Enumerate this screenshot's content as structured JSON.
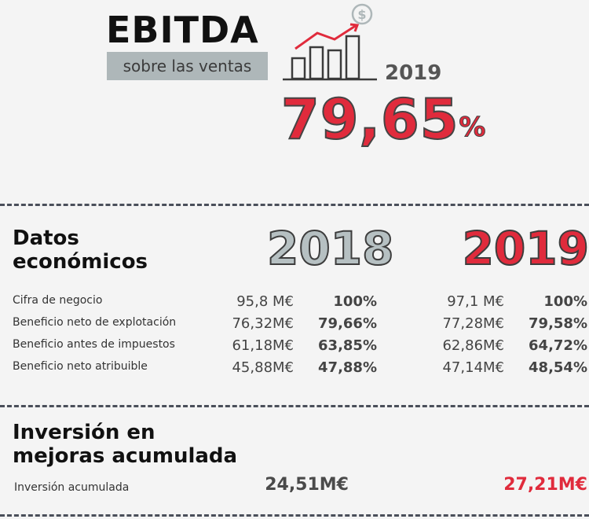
{
  "header": {
    "title": "EBITDA",
    "subtitle": "sobre las ventas",
    "year": "2019",
    "percent_value": "79,65",
    "percent_sign": "%",
    "icon": "bar-chart-growth-dollar-icon",
    "accent_color": "#e02b3c"
  },
  "datos": {
    "title_line1": "Datos",
    "title_line2": "económicos",
    "year_a": "2018",
    "year_b": "2019",
    "rows": [
      {
        "label": "Cifra de negocio",
        "v2018": "95,8 M€",
        "p2018": "100%",
        "v2019": "97,1 M€",
        "p2019": "100%"
      },
      {
        "label": "Beneficio neto de explotación",
        "v2018": "76,32M€",
        "p2018": "79,66%",
        "v2019": "77,28M€",
        "p2019": "79,58%"
      },
      {
        "label": "Beneficio antes de impuestos",
        "v2018": "61,18M€",
        "p2018": "63,85%",
        "v2019": "62,86M€",
        "p2019": "64,72%"
      },
      {
        "label": "Beneficio neto atribuible",
        "v2018": "45,88M€",
        "p2018": "47,88%",
        "v2019": "47,14M€",
        "p2019": "48,54%"
      }
    ]
  },
  "inversion": {
    "title_line1": "Inversión en",
    "title_line2": "mejoras acumulada",
    "label": "Inversión acumulada",
    "v2018": "24,51M€",
    "v2019": "27,21M€"
  }
}
